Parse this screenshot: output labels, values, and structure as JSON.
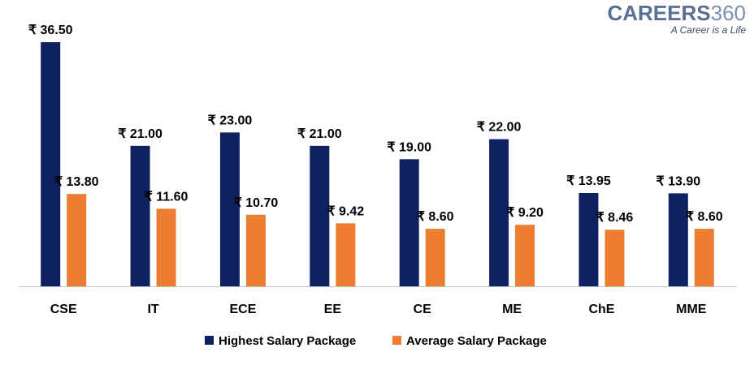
{
  "logo": {
    "brand_main": "CAREERS",
    "brand_num": "360",
    "tagline": "A Career is a Life"
  },
  "colors": {
    "highest": "#0f2160",
    "average": "#ed7d31",
    "axis": "#bfbfbf"
  },
  "chart_data": {
    "type": "bar",
    "categories": [
      "CSE",
      "IT",
      "ECE",
      "EE",
      "CE",
      "ME",
      "ChE",
      "MME"
    ],
    "series": [
      {
        "name": "Highest Salary Package",
        "values": [
          36.5,
          21.0,
          23.0,
          21.0,
          19.0,
          22.0,
          13.95,
          13.9
        ],
        "labels": [
          "₹ 36.50",
          "₹ 21.00",
          "₹ 23.00",
          "₹ 21.00",
          "₹ 19.00",
          "₹ 22.00",
          "₹ 13.95",
          "₹ 13.90"
        ]
      },
      {
        "name": "Average Salary Package",
        "values": [
          13.8,
          11.6,
          10.7,
          9.42,
          8.6,
          9.2,
          8.46,
          8.6
        ],
        "labels": [
          "₹ 13.80",
          "₹ 11.60",
          "₹ 10.70",
          "₹ 9.42",
          "₹ 8.60",
          "₹ 9.20",
          "₹ 8.46",
          "₹ 8.60"
        ]
      }
    ],
    "ylim": [
      0,
      36.5
    ],
    "grid": false,
    "legend_position": "bottom"
  }
}
